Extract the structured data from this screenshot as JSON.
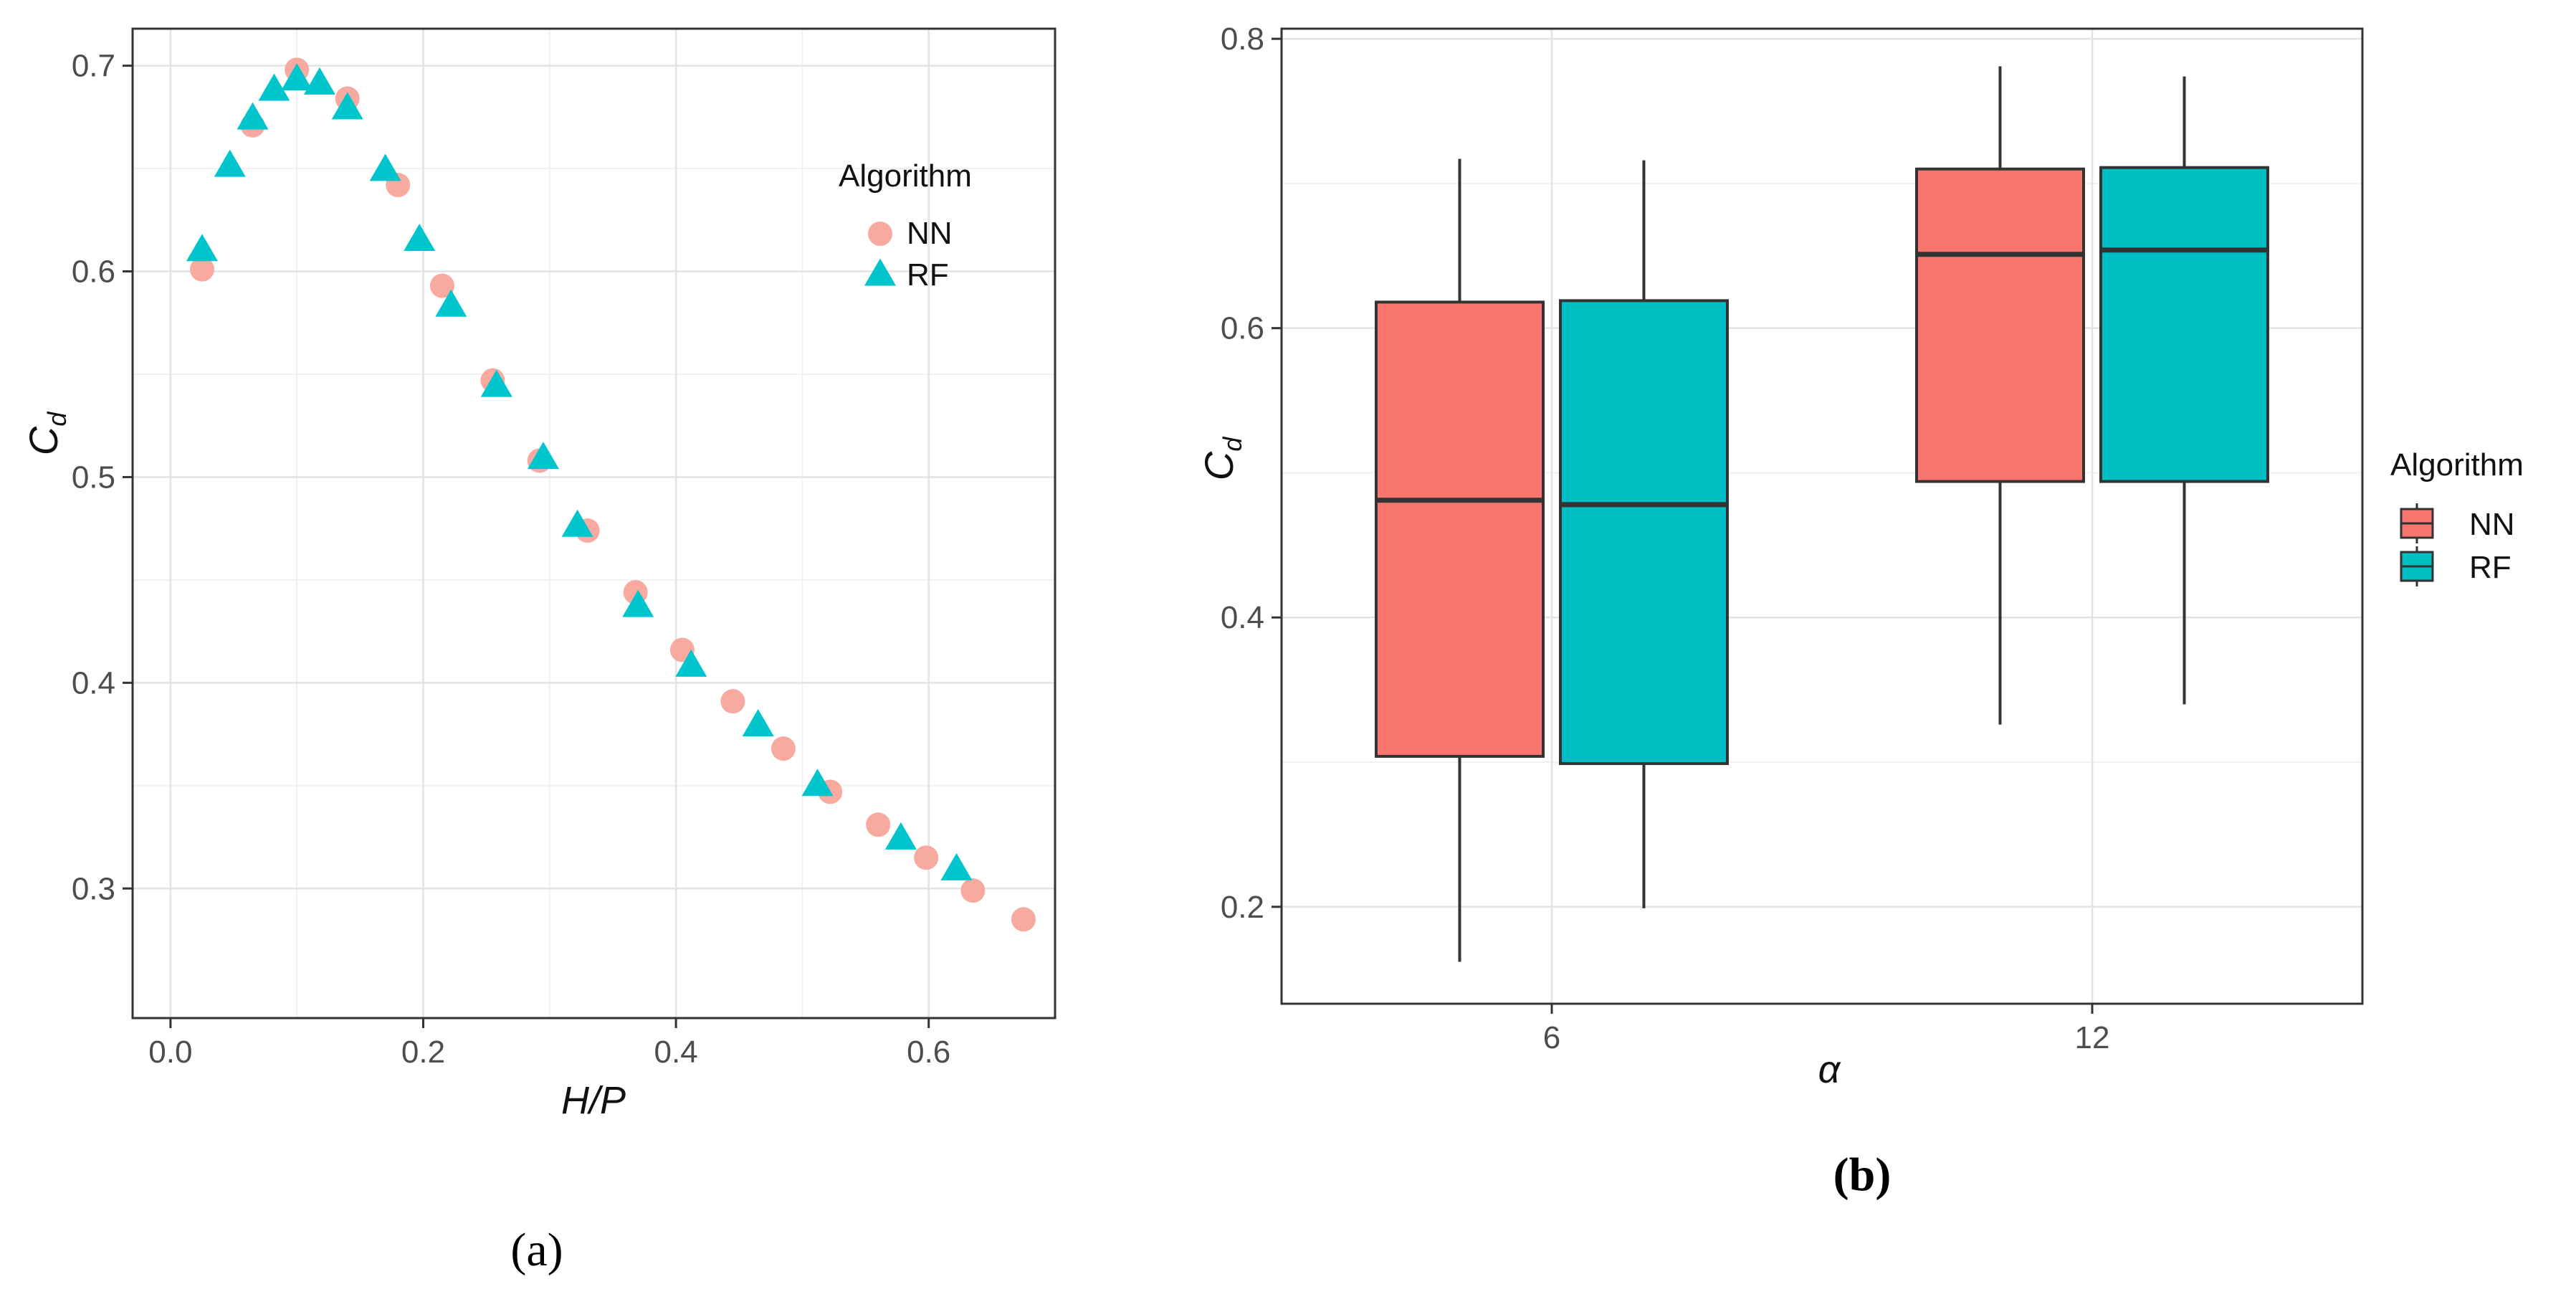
{
  "chart_data": [
    {
      "type": "scatter",
      "xlabel": "H/P",
      "ylabel_main": "C",
      "ylabel_sub": "d",
      "xlim": [
        -0.03,
        0.7
      ],
      "ylim": [
        0.237,
        0.718
      ],
      "x_ticks": [
        0.0,
        0.2,
        0.4,
        0.6
      ],
      "x_tick_labels": [
        "0.0",
        "0.2",
        "0.4",
        "0.6"
      ],
      "y_ticks": [
        0.3,
        0.4,
        0.5,
        0.6,
        0.7
      ],
      "y_tick_labels": [
        "0.3",
        "0.4",
        "0.5",
        "0.6",
        "0.7"
      ],
      "grid": true,
      "legend": {
        "title": "Algorithm",
        "position": "right-inside",
        "entries": [
          {
            "name": "NN",
            "marker": "circle"
          },
          {
            "name": "RF",
            "marker": "triangle"
          }
        ]
      },
      "series": [
        {
          "name": "NN",
          "marker": "circle",
          "color": "#F8A9A0",
          "points": [
            [
              0.025,
              0.601
            ],
            [
              0.065,
              0.671
            ],
            [
              0.1,
              0.698
            ],
            [
              0.14,
              0.684
            ],
            [
              0.18,
              0.642
            ],
            [
              0.215,
              0.593
            ],
            [
              0.255,
              0.547
            ],
            [
              0.292,
              0.508
            ],
            [
              0.33,
              0.474
            ],
            [
              0.368,
              0.444
            ],
            [
              0.405,
              0.416
            ],
            [
              0.445,
              0.391
            ],
            [
              0.485,
              0.368
            ],
            [
              0.522,
              0.347
            ],
            [
              0.56,
              0.331
            ],
            [
              0.598,
              0.315
            ],
            [
              0.635,
              0.299
            ],
            [
              0.675,
              0.285
            ]
          ]
        },
        {
          "name": "RF",
          "marker": "triangle",
          "color": "#00C5CD",
          "points": [
            [
              0.025,
              0.61
            ],
            [
              0.047,
              0.651
            ],
            [
              0.065,
              0.674
            ],
            [
              0.082,
              0.688
            ],
            [
              0.1,
              0.693
            ],
            [
              0.118,
              0.691
            ],
            [
              0.14,
              0.679
            ],
            [
              0.17,
              0.649
            ],
            [
              0.197,
              0.615
            ],
            [
              0.222,
              0.583
            ],
            [
              0.258,
              0.544
            ],
            [
              0.295,
              0.509
            ],
            [
              0.322,
              0.476
            ],
            [
              0.37,
              0.437
            ],
            [
              0.412,
              0.408
            ],
            [
              0.465,
              0.379
            ],
            [
              0.512,
              0.35
            ],
            [
              0.578,
              0.324
            ],
            [
              0.622,
              0.309
            ]
          ]
        }
      ]
    },
    {
      "type": "boxplot",
      "xlabel": "α",
      "ylabel_main": "C",
      "ylabel_sub": "d",
      "ylim": [
        0.133,
        0.807
      ],
      "y_ticks": [
        0.2,
        0.4,
        0.6,
        0.8
      ],
      "y_tick_labels": [
        "0.2",
        "0.4",
        "0.6",
        "0.8"
      ],
      "categories": [
        "6",
        "12"
      ],
      "grid": true,
      "legend": {
        "title": "Algorithm",
        "position": "right-outside",
        "entries": [
          {
            "name": "NN",
            "color": "#F8766D"
          },
          {
            "name": "RF",
            "color": "#00BFC4"
          }
        ]
      },
      "series": [
        {
          "name": "NN",
          "color": "#F8766D",
          "boxes": [
            {
              "category": "6",
              "min": 0.162,
              "q1": 0.304,
              "median": 0.481,
              "q3": 0.618,
              "max": 0.717
            },
            {
              "category": "12",
              "min": 0.326,
              "q1": 0.494,
              "median": 0.651,
              "q3": 0.71,
              "max": 0.781
            }
          ]
        },
        {
          "name": "RF",
          "color": "#00BFC4",
          "boxes": [
            {
              "category": "6",
              "min": 0.199,
              "q1": 0.299,
              "median": 0.478,
              "q3": 0.619,
              "max": 0.716
            },
            {
              "category": "12",
              "min": 0.34,
              "q1": 0.494,
              "median": 0.654,
              "q3": 0.711,
              "max": 0.774
            }
          ]
        }
      ]
    }
  ],
  "captions": {
    "a": "(a)",
    "b": "(b)"
  }
}
